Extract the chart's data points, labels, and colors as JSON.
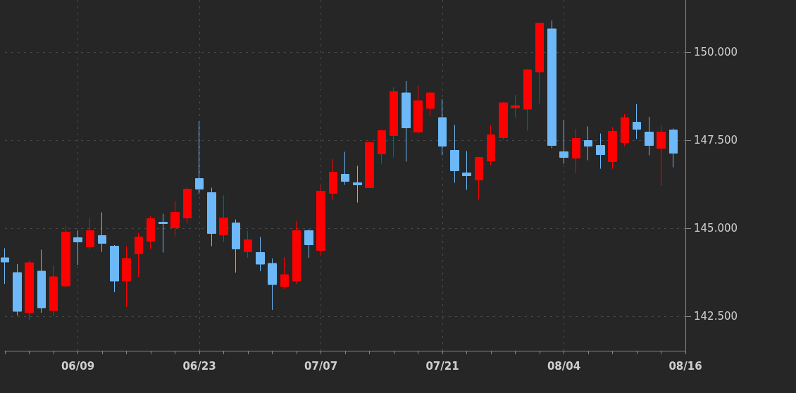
{
  "chart_data": {
    "type": "candlestick",
    "categories": [
      null,
      null,
      null,
      null,
      null,
      null,
      "06/09",
      null,
      null,
      null,
      null,
      null,
      null,
      null,
      null,
      null,
      "06/23",
      null,
      null,
      null,
      null,
      null,
      null,
      null,
      null,
      null,
      "07/07",
      null,
      null,
      null,
      null,
      null,
      null,
      null,
      null,
      null,
      "07/21",
      null,
      null,
      null,
      null,
      null,
      null,
      null,
      null,
      null,
      "08/04",
      null,
      null,
      null,
      null,
      null,
      null,
      null,
      null,
      null,
      "08/16"
    ],
    "ohlc": [
      [
        144.16,
        144.43,
        143.42,
        144.04
      ],
      [
        143.74,
        143.98,
        142.52,
        142.64
      ],
      [
        142.6,
        144.1,
        142.38,
        144.02
      ],
      [
        143.78,
        144.39,
        142.6,
        142.74
      ],
      [
        142.66,
        143.94,
        142.5,
        143.62
      ],
      [
        143.36,
        145.07,
        143.32,
        144.89
      ],
      [
        144.73,
        144.93,
        143.96,
        144.61
      ],
      [
        144.47,
        145.29,
        144.39,
        144.93
      ],
      [
        144.79,
        145.45,
        144.33,
        144.57
      ],
      [
        144.49,
        144.52,
        143.18,
        143.5
      ],
      [
        143.5,
        144.49,
        142.76,
        144.14
      ],
      [
        144.27,
        144.87,
        143.62,
        144.75
      ],
      [
        144.63,
        145.35,
        144.41,
        145.27
      ],
      [
        145.17,
        145.41,
        144.31,
        145.13
      ],
      [
        145.01,
        145.77,
        144.77,
        145.45
      ],
      [
        145.29,
        146.15,
        145.13,
        146.11
      ],
      [
        146.41,
        148.03,
        145.97,
        146.11
      ],
      [
        146.01,
        146.15,
        144.49,
        144.85
      ],
      [
        144.81,
        145.93,
        144.61,
        145.29
      ],
      [
        145.15,
        145.25,
        143.74,
        144.41
      ],
      [
        144.33,
        144.93,
        144.16,
        144.67
      ],
      [
        144.31,
        144.75,
        143.78,
        143.98
      ],
      [
        144.0,
        144.14,
        142.68,
        143.4
      ],
      [
        143.34,
        144.18,
        143.28,
        143.68
      ],
      [
        143.5,
        145.21,
        143.42,
        144.93
      ],
      [
        144.93,
        144.97,
        144.16,
        144.53
      ],
      [
        144.37,
        146.21,
        144.22,
        146.05
      ],
      [
        145.99,
        146.97,
        145.81,
        146.59
      ],
      [
        146.53,
        147.17,
        146.23,
        146.33
      ],
      [
        146.29,
        146.77,
        145.73,
        146.23
      ],
      [
        146.15,
        147.45,
        146.13,
        147.43
      ],
      [
        147.11,
        147.79,
        146.83,
        147.77
      ],
      [
        147.63,
        149.0,
        147.01,
        148.88
      ],
      [
        148.84,
        149.18,
        146.89,
        147.85
      ],
      [
        147.73,
        149.06,
        147.69,
        148.62
      ],
      [
        148.4,
        148.86,
        148.18,
        148.84
      ],
      [
        148.14,
        148.66,
        147.07,
        147.33
      ],
      [
        147.21,
        147.93,
        146.29,
        146.63
      ],
      [
        146.57,
        147.19,
        146.09,
        146.49
      ],
      [
        146.37,
        147.03,
        145.81,
        147.01
      ],
      [
        146.91,
        147.93,
        146.79,
        147.65
      ],
      [
        147.57,
        148.58,
        147.51,
        148.56
      ],
      [
        148.42,
        148.78,
        148.14,
        148.48
      ],
      [
        148.38,
        149.52,
        147.77,
        149.5
      ],
      [
        149.44,
        150.82,
        148.54,
        150.82
      ],
      [
        150.66,
        150.9,
        147.27,
        147.35
      ],
      [
        147.17,
        148.08,
        146.83,
        147.01
      ],
      [
        146.99,
        147.81,
        146.57,
        147.55
      ],
      [
        147.49,
        147.89,
        146.93,
        147.33
      ],
      [
        147.35,
        147.69,
        146.69,
        147.09
      ],
      [
        146.89,
        147.87,
        146.69,
        147.75
      ],
      [
        147.43,
        148.24,
        147.33,
        148.14
      ],
      [
        148.01,
        148.52,
        147.53,
        147.81
      ],
      [
        147.73,
        148.16,
        147.07,
        147.35
      ],
      [
        147.27,
        147.93,
        146.21,
        147.73
      ],
      [
        147.79,
        147.83,
        146.73,
        147.13
      ],
      null
    ],
    "colors": [
      "#6cb8f8",
      "#6cb8f8",
      "#ff0000",
      "#6cb8f8",
      "#ff0000",
      "#ff0000",
      "#6cb8f8",
      "#ff0000",
      "#6cb8f8",
      "#6cb8f8",
      "#ff0000",
      "#ff0000",
      "#ff0000",
      "#6cb8f8",
      "#ff0000",
      "#ff0000",
      "#6cb8f8",
      "#6cb8f8",
      "#ff0000",
      "#6cb8f8",
      "#ff0000",
      "#6cb8f8",
      "#6cb8f8",
      "#ff0000",
      "#ff0000",
      "#6cb8f8",
      "#ff0000",
      "#ff0000",
      "#6cb8f8",
      "#6cb8f8",
      "#ff0000",
      "#ff0000",
      "#ff0000",
      "#6cb8f8",
      "#ff0000",
      "#ff0000",
      "#6cb8f8",
      "#6cb8f8",
      "#6cb8f8",
      "#ff0000",
      "#ff0000",
      "#ff0000",
      "#ff0000",
      "#ff0000",
      "#ff0000",
      "#6cb8f8",
      "#6cb8f8",
      "#ff0000",
      "#6cb8f8",
      "#6cb8f8",
      "#ff0000",
      "#ff0000",
      "#6cb8f8",
      "#6cb8f8",
      "#ff0000",
      "#6cb8f8",
      null
    ],
    "ylim": [
      141.52,
      151.48
    ],
    "yticks": [
      {
        "value": 142.5,
        "label": "142.500"
      },
      {
        "value": 145,
        "label": "145.000"
      },
      {
        "value": 147.5,
        "label": "147.500"
      },
      {
        "value": 150,
        "label": "150.000"
      }
    ],
    "grid": true
  }
}
